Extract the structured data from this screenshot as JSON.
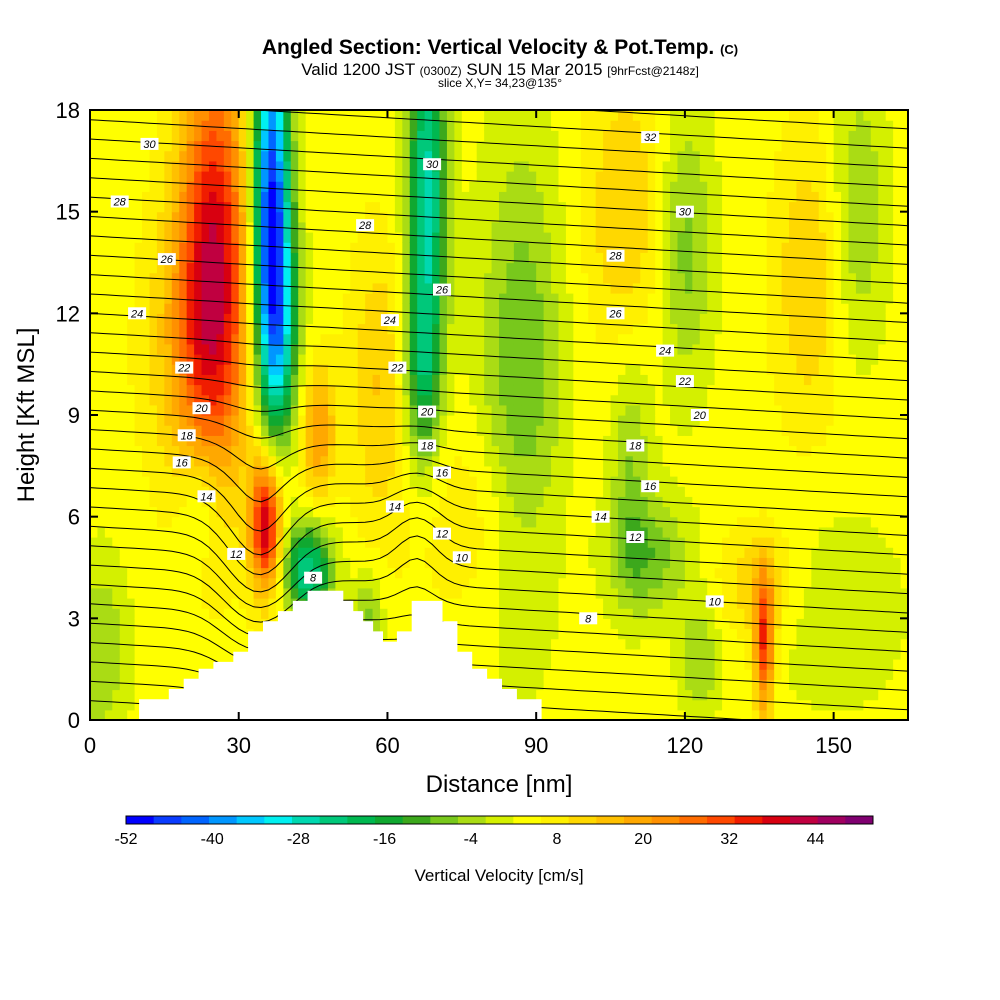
{
  "chart_data": {
    "type": "heatmap",
    "title": "Angled Section: Vertical Velocity & Pot.Temp.",
    "title_unit": "(C)",
    "subtitle_prefix": "Valid 1200 JST",
    "subtitle_z": "(0300Z)",
    "subtitle_date": "SUN 15 Mar 2015",
    "subtitle_fcst": "[9hrFcst@2148z]",
    "slice_text": "slice X,Y= 34,23@135°",
    "xlabel": "Distance [nm]",
    "ylabel": "Height [Kft MSL]",
    "xlim": [
      0,
      165
    ],
    "ylim": [
      0,
      18
    ],
    "x_ticks": [
      "0",
      "30",
      "60",
      "90",
      "120",
      "150"
    ],
    "y_ticks": [
      "0",
      "3",
      "6",
      "9",
      "12",
      "15",
      "18"
    ],
    "colorbar": {
      "title": "Vertical Velocity [cm/s]",
      "levels_min": -52,
      "levels_max": 52,
      "step": 4,
      "tick_labels": [
        "-52",
        "-40",
        "-28",
        "-16",
        "-4",
        "8",
        "20",
        "32",
        "44"
      ],
      "colors": [
        "#0000ff",
        "#0a3cff",
        "#0064ff",
        "#0096ff",
        "#00c8ff",
        "#00f0f0",
        "#00d8b0",
        "#00c87a",
        "#00b850",
        "#10a830",
        "#3ca81c",
        "#78c81c",
        "#aadc14",
        "#d4f000",
        "#ffff00",
        "#fff000",
        "#ffd800",
        "#ffc000",
        "#ffa800",
        "#ff9000",
        "#ff6c00",
        "#ff4800",
        "#f01c00",
        "#d80010",
        "#c00040",
        "#a00060",
        "#800070"
      ]
    },
    "isentrope_labels": [
      {
        "text": "30",
        "x": 12,
        "y": 17.0
      },
      {
        "text": "28",
        "x": 6,
        "y": 15.3
      },
      {
        "text": "26",
        "x": 15.5,
        "y": 13.6
      },
      {
        "text": "24",
        "x": 9.5,
        "y": 12.0
      },
      {
        "text": "22",
        "x": 19,
        "y": 10.4
      },
      {
        "text": "20",
        "x": 22.5,
        "y": 9.2
      },
      {
        "text": "18",
        "x": 19.5,
        "y": 8.4
      },
      {
        "text": "16",
        "x": 18.5,
        "y": 7.6
      },
      {
        "text": "14",
        "x": 23.5,
        "y": 6.6
      },
      {
        "text": "12",
        "x": 29.5,
        "y": 4.9
      },
      {
        "text": "8",
        "x": 45,
        "y": 4.2
      },
      {
        "text": "28",
        "x": 55.5,
        "y": 14.6
      },
      {
        "text": "24",
        "x": 60.5,
        "y": 11.8
      },
      {
        "text": "22",
        "x": 62,
        "y": 10.4
      },
      {
        "text": "30",
        "x": 69,
        "y": 16.4
      },
      {
        "text": "26",
        "x": 71,
        "y": 12.7
      },
      {
        "text": "20",
        "x": 68,
        "y": 9.1
      },
      {
        "text": "18",
        "x": 68,
        "y": 8.1
      },
      {
        "text": "16",
        "x": 71,
        "y": 7.3
      },
      {
        "text": "14",
        "x": 61.5,
        "y": 6.3
      },
      {
        "text": "12",
        "x": 71,
        "y": 5.5
      },
      {
        "text": "10",
        "x": 75,
        "y": 4.8
      },
      {
        "text": "32",
        "x": 113,
        "y": 17.2
      },
      {
        "text": "30",
        "x": 120,
        "y": 15.0
      },
      {
        "text": "28",
        "x": 106,
        "y": 13.7
      },
      {
        "text": "26",
        "x": 106,
        "y": 12.0
      },
      {
        "text": "24",
        "x": 116,
        "y": 10.9
      },
      {
        "text": "22",
        "x": 120,
        "y": 10.0
      },
      {
        "text": "20",
        "x": 123,
        "y": 9.0
      },
      {
        "text": "18",
        "x": 110,
        "y": 8.1
      },
      {
        "text": "16",
        "x": 113,
        "y": 6.9
      },
      {
        "text": "14",
        "x": 103,
        "y": 6.0
      },
      {
        "text": "12",
        "x": 110,
        "y": 5.4
      },
      {
        "text": "10",
        "x": 126,
        "y": 3.5
      },
      {
        "text": "8",
        "x": 100.5,
        "y": 3.0
      }
    ],
    "terrain": [
      [
        10,
        0
      ],
      [
        10,
        0.6
      ],
      [
        16,
        0.6
      ],
      [
        16,
        0.9
      ],
      [
        19,
        0.9
      ],
      [
        19,
        1.2
      ],
      [
        22,
        1.2
      ],
      [
        22,
        1.5
      ],
      [
        25,
        1.5
      ],
      [
        25,
        1.7
      ],
      [
        29,
        1.7
      ],
      [
        29,
        2.0
      ],
      [
        32,
        2.0
      ],
      [
        32,
        2.6
      ],
      [
        35,
        2.6
      ],
      [
        35,
        2.9
      ],
      [
        38,
        2.9
      ],
      [
        38,
        3.2
      ],
      [
        41,
        3.2
      ],
      [
        41,
        3.5
      ],
      [
        44,
        3.5
      ],
      [
        44,
        3.8
      ],
      [
        51,
        3.8
      ],
      [
        51,
        3.5
      ],
      [
        53,
        3.5
      ],
      [
        53,
        3.2
      ],
      [
        55,
        3.2
      ],
      [
        55,
        2.9
      ],
      [
        57,
        2.9
      ],
      [
        57,
        2.6
      ],
      [
        59,
        2.6
      ],
      [
        59,
        2.3
      ],
      [
        62,
        2.3
      ],
      [
        62,
        2.6
      ],
      [
        65,
        2.6
      ],
      [
        65,
        3.5
      ],
      [
        71,
        3.5
      ],
      [
        71,
        2.9
      ],
      [
        74,
        2.9
      ],
      [
        74,
        2.0
      ],
      [
        77,
        2.0
      ],
      [
        77,
        1.5
      ],
      [
        80,
        1.5
      ],
      [
        80,
        1.2
      ],
      [
        83,
        1.2
      ],
      [
        83,
        0.9
      ],
      [
        86,
        0.9
      ],
      [
        86,
        0.6
      ],
      [
        91,
        0.6
      ],
      [
        91,
        0
      ]
    ],
    "fields": {
      "w_background": 6,
      "features": [
        {
          "x": 25,
          "y": 14,
          "sx": 5,
          "sy": 4.5,
          "amp": 32
        },
        {
          "x": 22,
          "y": 11,
          "sx": 7,
          "sy": 3,
          "amp": 14
        },
        {
          "x": 35.5,
          "y": 5.8,
          "sx": 2.2,
          "sy": 1.4,
          "amp": 40
        },
        {
          "x": 46,
          "y": 8.5,
          "sx": 2.5,
          "sy": 1.4,
          "amp": 18
        },
        {
          "x": 36.5,
          "y": 15.5,
          "sx": 2.6,
          "sy": 3.8,
          "amp": -52
        },
        {
          "x": 38,
          "y": 11.5,
          "sx": 3,
          "sy": 2.5,
          "amp": -26
        },
        {
          "x": 44,
          "y": 4.4,
          "sx": 3.5,
          "sy": 1,
          "amp": -30
        },
        {
          "x": 68,
          "y": 15.5,
          "sx": 2.8,
          "sy": 3.8,
          "amp": -32
        },
        {
          "x": 67,
          "y": 10,
          "sx": 2.5,
          "sy": 2,
          "amp": -16
        },
        {
          "x": 58,
          "y": 10,
          "sx": 4,
          "sy": 3,
          "amp": 10
        },
        {
          "x": 87,
          "y": 10,
          "sx": 6,
          "sy": 5,
          "amp": -14
        },
        {
          "x": 109,
          "y": 7.5,
          "sx": 3,
          "sy": 2.5,
          "amp": -10
        },
        {
          "x": 108,
          "y": 15,
          "sx": 6,
          "sy": 3,
          "amp": 10
        },
        {
          "x": 120,
          "y": 14,
          "sx": 4,
          "sy": 3,
          "amp": -12
        },
        {
          "x": 145,
          "y": 13,
          "sx": 5,
          "sy": 3,
          "amp": 10
        },
        {
          "x": 155,
          "y": 15,
          "sx": 4,
          "sy": 3,
          "amp": -10
        },
        {
          "x": 113,
          "y": 4.8,
          "sx": 6,
          "sy": 1.2,
          "amp": -12
        },
        {
          "x": 123,
          "y": 1.8,
          "sx": 3,
          "sy": 1.2,
          "amp": -10
        },
        {
          "x": 136,
          "y": 2.2,
          "sx": 1.4,
          "sy": 1.5,
          "amp": 30
        },
        {
          "x": 135,
          "y": 4,
          "sx": 6,
          "sy": 1.2,
          "amp": 10
        },
        {
          "x": 2,
          "y": 2,
          "sx": 4,
          "sy": 2,
          "amp": -10
        },
        {
          "x": 22,
          "y": 6.5,
          "sx": 3,
          "sy": 1.2,
          "amp": -10
        },
        {
          "x": 56,
          "y": 3,
          "sx": 2,
          "sy": 1,
          "amp": -12
        },
        {
          "x": 78,
          "y": 6,
          "sx": 10,
          "sy": 2,
          "amp": 6
        },
        {
          "x": 150,
          "y": 3.2,
          "sx": 10,
          "sy": 2,
          "amp": -6
        }
      ]
    }
  }
}
